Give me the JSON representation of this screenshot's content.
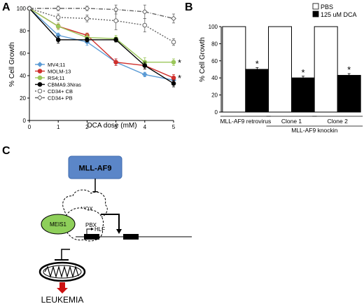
{
  "panels": {
    "a_label": "A",
    "b_label": "B",
    "c_label": "C"
  },
  "chart_data": [
    {
      "type": "line",
      "panel": "A",
      "xlabel": "DCA dose (mM)",
      "ylabel": "% Cell Growth",
      "xlim": [
        0,
        5
      ],
      "ylim": [
        0,
        100
      ],
      "x": [
        0,
        1,
        2,
        3,
        4,
        5
      ],
      "xticks": [
        "0",
        "1",
        "2",
        "3",
        "4",
        "5"
      ],
      "yticks": [
        "0",
        "20",
        "40",
        "60",
        "80",
        "100"
      ],
      "series": [
        {
          "name": "MV4;11",
          "color": "#5b9bd5",
          "marker": "diamond",
          "dash": "",
          "values": [
            100,
            76,
            70,
            52,
            41,
            36
          ],
          "errors": [
            0,
            2,
            3,
            3,
            2,
            2
          ]
        },
        {
          "name": "MOLM-13",
          "color": "#d0312d",
          "marker": "circle",
          "dash": "",
          "values": [
            100,
            84,
            76,
            52,
            49,
            38
          ],
          "errors": [
            0,
            2,
            2,
            3,
            3,
            3
          ]
        },
        {
          "name": "RS4;11",
          "color": "#9bc75a",
          "marker": "circle",
          "dash": "",
          "values": [
            100,
            84,
            74,
            73,
            52,
            52
          ],
          "errors": [
            0,
            3,
            3,
            3,
            4,
            3
          ]
        },
        {
          "name": "CBMA9.3Nras",
          "color": "#000000",
          "marker": "circle",
          "dash": "",
          "values": [
            100,
            72,
            72,
            72,
            49,
            33
          ],
          "errors": [
            0,
            3,
            2,
            2,
            3,
            3
          ]
        },
        {
          "name": "CD34+ CB",
          "color": "#666666",
          "marker": "open-circle",
          "dash": "2,2",
          "values": [
            100,
            92,
            91,
            89,
            85,
            70
          ],
          "errors": [
            0,
            3,
            3,
            8,
            6,
            3
          ]
        },
        {
          "name": "CD34+ PB",
          "color": "#666666",
          "marker": "open-diamond",
          "dash": "6,2,1,2",
          "values": [
            100,
            100,
            100,
            99,
            97,
            91
          ],
          "errors": [
            0,
            2,
            2,
            4,
            6,
            4
          ]
        }
      ],
      "annotations": [
        "*",
        "*"
      ]
    },
    {
      "type": "bar",
      "panel": "B",
      "ylabel": "% Cell Growth",
      "ylim": [
        0,
        100
      ],
      "yticks": [
        "0",
        "20",
        "40",
        "60",
        "80",
        "100"
      ],
      "categories": [
        "MLL-AF9 retrovirus",
        "Clone 1",
        "Clone 2"
      ],
      "group_label": "MLL-AF9 knockin",
      "series": [
        {
          "name": "PBS",
          "color": "#ffffff",
          "values": [
            100,
            100,
            100
          ]
        },
        {
          "name": "125 uM DCA",
          "color": "#000000",
          "values": [
            50,
            40,
            43
          ],
          "errors": [
            2,
            2,
            2
          ]
        }
      ],
      "annotations": [
        "*",
        "*",
        "*"
      ]
    }
  ],
  "diagram_c": {
    "box_label": "MLL-AF9",
    "box_color": "#5b86c8",
    "meis_label": "MEIS1",
    "meis_color": "#8ecf5a",
    "hox_label": "HOX",
    "pbx_label": "PBX",
    "hlf_label": "HLF",
    "leukemia_label": "LEUKEMIA",
    "arrow_color": "#cc1111"
  }
}
